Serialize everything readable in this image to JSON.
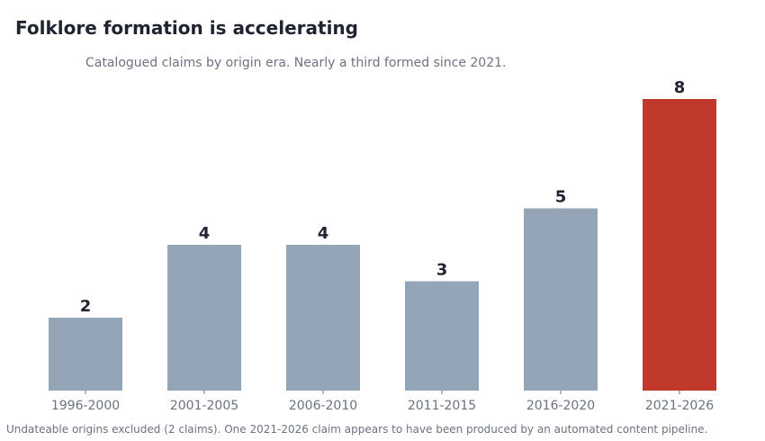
{
  "colors": {
    "bar_default": "#94a5b8",
    "bar_highlight": "#c0392b",
    "value_label": "#1f2430",
    "tick_label": "#6b7280",
    "title": "#1f2430",
    "muted_text": "#6b7280"
  },
  "chart_data": {
    "type": "bar",
    "title": "Folklore formation is accelerating",
    "subtitle": "Catalogued claims by origin era. Nearly a third formed since 2021.",
    "xlabel": "",
    "ylabel": "",
    "categories": [
      "1996-2000",
      "2001-2005",
      "2006-2010",
      "2011-2015",
      "2016-2020",
      "2021-2026"
    ],
    "values": [
      2,
      4,
      4,
      3,
      5,
      8
    ],
    "highlight_category": "2021-2026",
    "ylim": [
      0,
      8
    ],
    "grid": false,
    "legend": "none",
    "data_labels": true,
    "footnote": "Undateable origins excluded (2 claims). One 2021-2026 claim appears to have been produced by an automated content pipeline."
  }
}
